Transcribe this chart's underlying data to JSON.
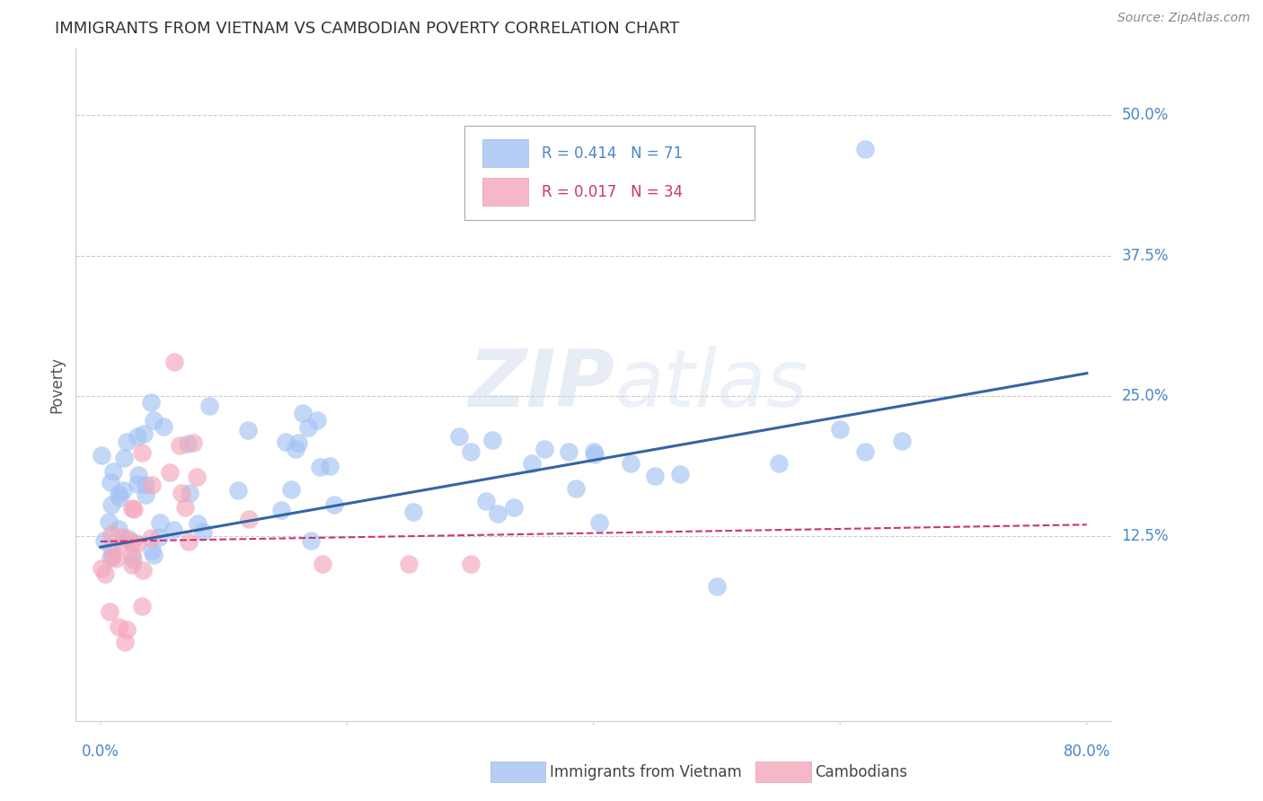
{
  "title": "IMMIGRANTS FROM VIETNAM VS CAMBODIAN POVERTY CORRELATION CHART",
  "source_text": "Source: ZipAtlas.com",
  "ylabel": "Poverty",
  "xlim_min": -0.02,
  "xlim_max": 0.82,
  "ylim_min": -0.04,
  "ylim_max": 0.56,
  "ytick_vals": [
    0.125,
    0.25,
    0.375,
    0.5
  ],
  "yticklabels": [
    "12.5%",
    "25.0%",
    "37.5%",
    "50.0%"
  ],
  "xtick_vals": [
    0.0,
    0.2,
    0.4,
    0.6,
    0.8
  ],
  "xticklabels_show": [
    "0.0%",
    "80.0%"
  ],
  "legend_r1": "R = 0.414",
  "legend_n1": "N = 71",
  "legend_r2": "R = 0.017",
  "legend_n2": "N = 34",
  "watermark_zip": "ZIP",
  "watermark_atlas": "atlas",
  "blue_scatter_color": "#a4c2f4",
  "pink_scatter_color": "#f4a7b9",
  "blue_line_color": "#3465a4",
  "pink_line_color": "#cc3377",
  "blue_legend_color": "#a4c2f4",
  "pink_legend_color": "#f4a7b9",
  "tick_label_color": "#4a86c8",
  "ylabel_color": "#555555",
  "title_color": "#333333",
  "source_color": "#888888",
  "grid_color": "#cccccc",
  "spine_color": "#cccccc",
  "bg_color": "#ffffff",
  "blue_trend_x0": 0.0,
  "blue_trend_x1": 0.8,
  "blue_trend_y0": 0.115,
  "blue_trend_y1": 0.27,
  "pink_trend_x0": 0.0,
  "pink_trend_x1": 0.8,
  "pink_trend_y0": 0.12,
  "pink_trend_y1": 0.135,
  "bottom_legend_label1": "Immigrants from Vietnam",
  "bottom_legend_label2": "Cambodians"
}
